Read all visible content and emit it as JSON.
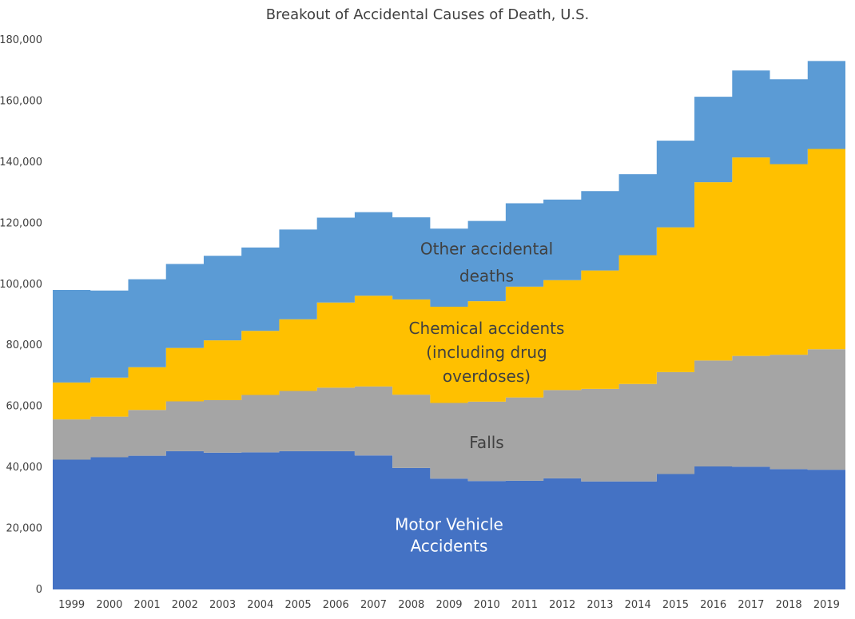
{
  "chart_data": {
    "type": "area",
    "title": "Breakout of Accidental Causes of Death, U.S.",
    "stacked": true,
    "step": true,
    "xlabel": "",
    "ylabel": "",
    "ylim": [
      0,
      180000
    ],
    "ytick_step": 20000,
    "yticks": [
      "0",
      "20,000",
      "40,000",
      "60,000",
      "80,000",
      "100,000",
      "120,000",
      "140,000",
      "160,000",
      "180,000"
    ],
    "grid": false,
    "legend": "none",
    "categories": [
      "1999",
      "2000",
      "2001",
      "2002",
      "2003",
      "2004",
      "2005",
      "2006",
      "2007",
      "2008",
      "2009",
      "2010",
      "2011",
      "2012",
      "2013",
      "2014",
      "2015",
      "2016",
      "2017",
      "2018",
      "2019"
    ],
    "series": [
      {
        "key": "motor",
        "color": "#4472C4",
        "label_color": "#ffffff",
        "label_lines": [
          "Motor Vehicle",
          "Accidents"
        ],
        "values": [
          42500,
          43300,
          43800,
          45300,
          44800,
          44900,
          45300,
          45300,
          43900,
          39800,
          36300,
          35500,
          35600,
          36400,
          35400,
          35400,
          37800,
          40300,
          40200,
          39400,
          39200
        ]
      },
      {
        "key": "falls",
        "color": "#A5A5A5",
        "label_color": "#404040",
        "label_lines": [
          "Falls"
        ],
        "values": [
          13200,
          13300,
          15000,
          16300,
          17200,
          18800,
          19700,
          20800,
          22600,
          24000,
          24800,
          26000,
          27300,
          28900,
          30300,
          31900,
          33400,
          34700,
          36300,
          37500,
          39500
        ]
      },
      {
        "key": "chemical",
        "color": "#FFC000",
        "label_color": "#404040",
        "label_lines": [
          "Chemical accidents",
          "(including drug",
          "overdoses)"
        ],
        "values": [
          12100,
          12800,
          14000,
          17500,
          19600,
          21000,
          23500,
          27900,
          29700,
          31200,
          31500,
          32900,
          36300,
          36000,
          38800,
          42200,
          47400,
          58400,
          65000,
          62400,
          65600
        ]
      },
      {
        "key": "other",
        "color": "#5B9BD5",
        "label_color": "#404040",
        "label_lines": [
          "Other accidental",
          "deaths"
        ],
        "values": [
          30300,
          28500,
          28800,
          27500,
          27700,
          27300,
          29400,
          27800,
          27400,
          26900,
          25600,
          26300,
          27300,
          26400,
          26000,
          26500,
          28400,
          28000,
          28500,
          27800,
          28800
        ]
      }
    ]
  }
}
